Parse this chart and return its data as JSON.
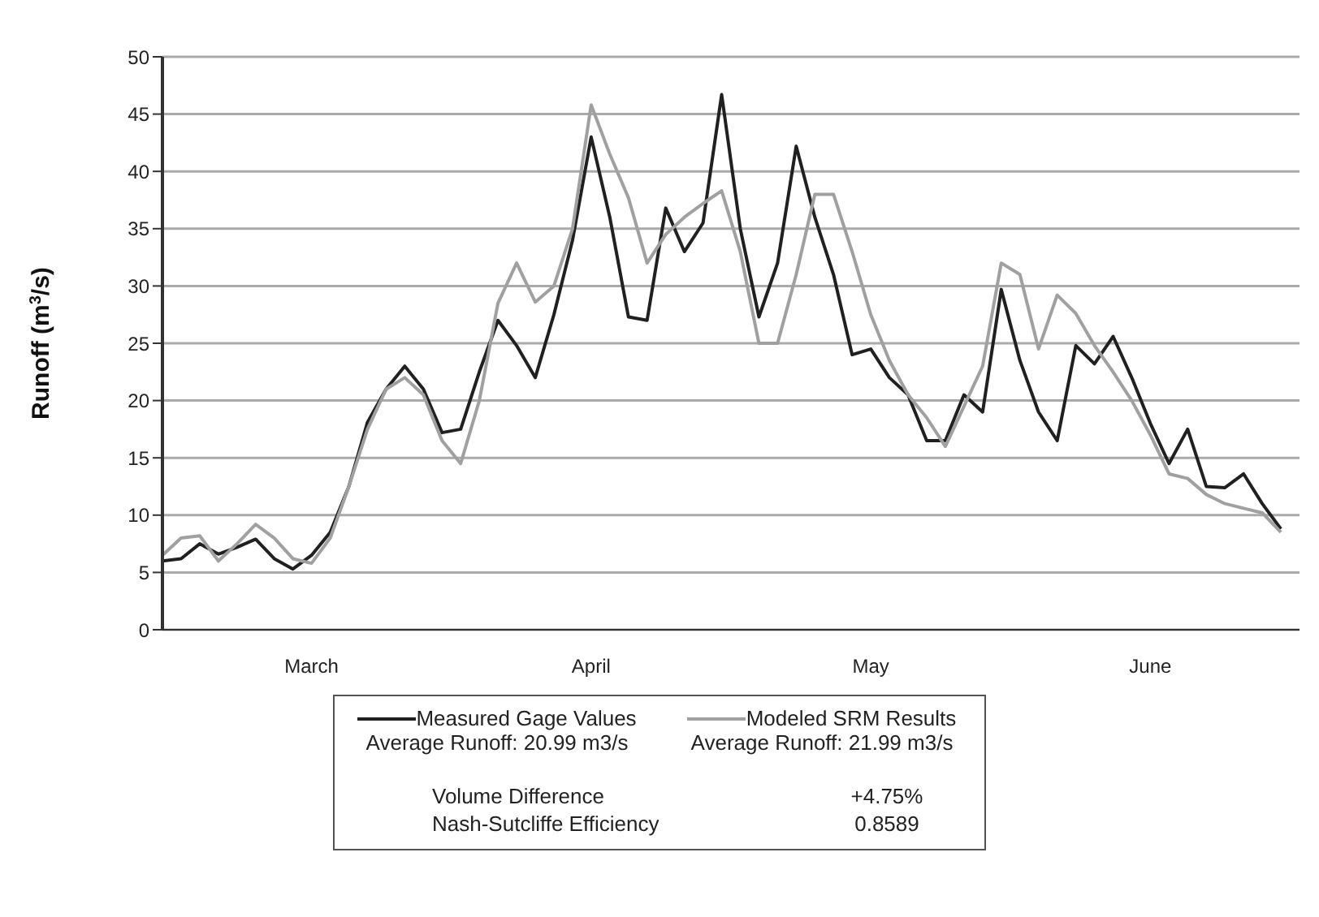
{
  "chart_data": {
    "type": "line",
    "ylabel": "Runoff (m$^{3}$/s)",
    "categories": [
      null,
      null,
      null,
      null,
      null,
      null,
      null,
      null,
      "March",
      null,
      null,
      null,
      null,
      null,
      null,
      null,
      null,
      null,
      null,
      null,
      null,
      null,
      null,
      "April",
      null,
      null,
      null,
      null,
      null,
      null,
      null,
      null,
      null,
      null,
      null,
      null,
      null,
      null,
      "May",
      null,
      null,
      null,
      null,
      null,
      null,
      null,
      null,
      null,
      null,
      null,
      null,
      null,
      null,
      "June",
      null,
      null,
      null,
      null,
      null,
      null,
      null
    ],
    "series": [
      {
        "name": "Measured Gage Values",
        "color": "#202020",
        "values": [
          6,
          6.2,
          7.5,
          6.6,
          7.2,
          7.9,
          6.2,
          5.3,
          6.5,
          8.5,
          12.5,
          18.1,
          21,
          23,
          21,
          17.2,
          17.5,
          22.5,
          27,
          24.8,
          22,
          27.5,
          34,
          43,
          36,
          27.3,
          27,
          36.8,
          33,
          35.5,
          46.7,
          35,
          27.3,
          32,
          42.2,
          36,
          31,
          24,
          24.5,
          22,
          20.5,
          16.5,
          16.5,
          20.5,
          19,
          29.7,
          23.5,
          19,
          16.5,
          24.8,
          23.2,
          25.6,
          22,
          18,
          14.5,
          17.5,
          12.5,
          12.4,
          13.6,
          11,
          8.8
        ]
      },
      {
        "name": "Modeled SRM Results",
        "color": "#a0a0a0",
        "values": [
          6.5,
          8,
          8.2,
          6,
          7.5,
          9.2,
          8,
          6.2,
          5.8,
          8,
          12.5,
          17.5,
          21,
          22,
          20.5,
          16.5,
          14.5,
          20,
          28.5,
          32,
          28.6,
          30,
          35,
          45.8,
          41.5,
          37.7,
          32,
          34.5,
          36,
          37.2,
          38.3,
          33,
          25,
          25,
          31,
          38,
          38,
          33,
          27.5,
          23.5,
          20.5,
          18.5,
          16,
          19.5,
          23,
          32,
          31,
          24.5,
          29.2,
          27.6,
          24.8,
          22.5,
          20,
          17,
          13.6,
          13.2,
          11.8,
          11,
          10.6,
          10.2,
          8.5
        ]
      }
    ],
    "ylim": [
      0,
      50
    ],
    "yticks": [
      0,
      5,
      10,
      15,
      20,
      25,
      30,
      35,
      40,
      45,
      50
    ],
    "grid": "y",
    "legend": "bottom",
    "marker": "none",
    "line_style": "solid",
    "annotations": [
      "Average Runoff: 20.99 m3/s",
      "Average Runoff: 21.99 m3/s",
      "Volume Difference",
      "+4.75%",
      "Nash-Sutcliffe Efficiency",
      "0.8589"
    ]
  }
}
